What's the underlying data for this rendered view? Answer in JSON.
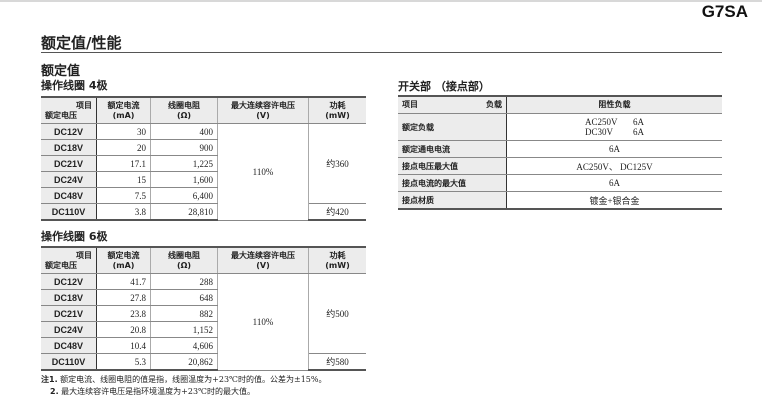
{
  "model": "G7SA",
  "title": "额定值/性能",
  "section": "额定值",
  "coil_header": {
    "item": "项目",
    "rated_voltage": "额定电压",
    "current": "额定电流",
    "current_unit": "(mA)",
    "resistance": "线圈电阻",
    "resistance_unit": "(Ω)",
    "max_voltage": "最大连续容许电压",
    "max_voltage_unit": "(V)",
    "power": "功耗",
    "power_unit": "(mW)"
  },
  "table4": {
    "title": "操作线圈 4极",
    "rows": [
      [
        "DC12V",
        "30",
        "400"
      ],
      [
        "DC18V",
        "20",
        "900"
      ],
      [
        "DC21V",
        "17.1",
        "1,225"
      ],
      [
        "DC24V",
        "15",
        "1,600"
      ],
      [
        "DC48V",
        "7.5",
        "6,400"
      ],
      [
        "DC110V",
        "3.8",
        "28,810"
      ]
    ],
    "max_voltage": "110%",
    "power_a": "约360",
    "power_b": "约420"
  },
  "table6": {
    "title": "操作线圈 6极",
    "rows": [
      [
        "DC12V",
        "41.7",
        "288"
      ],
      [
        "DC18V",
        "27.8",
        "648"
      ],
      [
        "DC21V",
        "23.8",
        "882"
      ],
      [
        "DC24V",
        "20.8",
        "1,152"
      ],
      [
        "DC48V",
        "10.4",
        "4,606"
      ],
      [
        "DC110V",
        "5.3",
        "20,862"
      ]
    ],
    "max_voltage": "110%",
    "power_a": "约500",
    "power_b": "约580"
  },
  "notes": [
    {
      "num": "注1.",
      "text": "额定电流、线圈电阻的值是指，线圈温度为+23℃时的值。公差为±15%。"
    },
    {
      "num": "2.",
      "text": "最大连续容许电压是指环境温度为+23℃时的最大值。"
    }
  ],
  "contact": {
    "title": "开关部 （接点部）",
    "header_item": "项目",
    "header_load": "负载",
    "header_value": "阻性负载",
    "rated_load_label": "额定负载",
    "rated_load": [
      [
        "AC250V",
        "6A"
      ],
      [
        "DC30V",
        "6A"
      ]
    ],
    "rows": [
      [
        "额定通电电流",
        "6A"
      ],
      [
        "接点电压最大值",
        "AC250V、 DC125V"
      ],
      [
        "接点电流的最大值",
        "6A"
      ],
      [
        "接点材质",
        "镀金+银合金"
      ]
    ]
  }
}
